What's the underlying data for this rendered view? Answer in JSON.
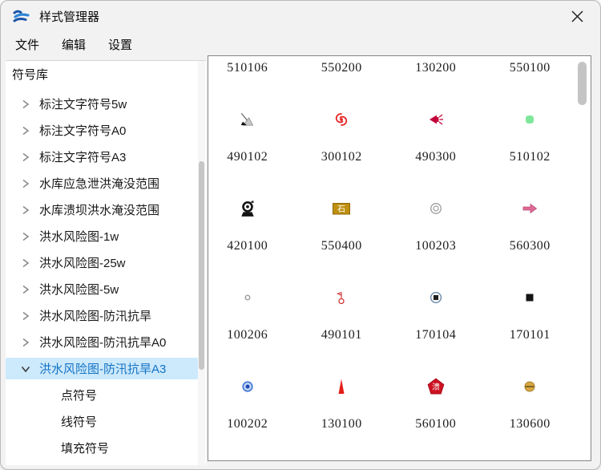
{
  "window": {
    "title": "样式管理器",
    "close_icon": "close"
  },
  "menu": {
    "items": [
      "文件",
      "编辑",
      "设置"
    ]
  },
  "sidebar": {
    "header": "符号库",
    "items": [
      {
        "label": "标注文字符号5w",
        "chevron": "collapsed",
        "level": 1,
        "selected": false
      },
      {
        "label": "标注文字符号A0",
        "chevron": "collapsed",
        "level": 1,
        "selected": false
      },
      {
        "label": "标注文字符号A3",
        "chevron": "collapsed",
        "level": 1,
        "selected": false
      },
      {
        "label": "水库应急泄洪淹没范围",
        "chevron": "collapsed",
        "level": 1,
        "selected": false
      },
      {
        "label": "水库溃坝洪水淹没范围",
        "chevron": "collapsed",
        "level": 1,
        "selected": false
      },
      {
        "label": "洪水风险图-1w",
        "chevron": "collapsed",
        "level": 1,
        "selected": false
      },
      {
        "label": "洪水风险图-25w",
        "chevron": "collapsed",
        "level": 1,
        "selected": false
      },
      {
        "label": "洪水风险图-5w",
        "chevron": "collapsed",
        "level": 1,
        "selected": false
      },
      {
        "label": "洪水风险图-防汛抗旱",
        "chevron": "collapsed",
        "level": 1,
        "selected": false
      },
      {
        "label": "洪水风险图-防汛抗旱A0",
        "chevron": "collapsed",
        "level": 1,
        "selected": false
      },
      {
        "label": "洪水风险图-防汛抗旱A3",
        "chevron": "expanded",
        "level": 1,
        "selected": true
      },
      {
        "label": "点符号",
        "chevron": "none",
        "level": 2,
        "selected": false
      },
      {
        "label": "线符号",
        "chevron": "none",
        "level": 2,
        "selected": false
      },
      {
        "label": "填充符号",
        "chevron": "none",
        "level": 2,
        "selected": false
      }
    ]
  },
  "grid": {
    "rows": [
      {
        "cells": [
          {
            "code": "510106",
            "icon": "hidden",
            "glyph": ""
          },
          {
            "code": "550200",
            "icon": "hidden",
            "glyph": ""
          },
          {
            "code": "130200",
            "icon": "hidden",
            "glyph": ""
          },
          {
            "code": "550100",
            "icon": "hidden",
            "glyph": ""
          }
        ]
      },
      {
        "cells": [
          {
            "code": "490102",
            "icon": "dark-sail",
            "glyph": ""
          },
          {
            "code": "300102",
            "icon": "red-typhoon",
            "glyph": ""
          },
          {
            "code": "490300",
            "icon": "crimson-horn",
            "glyph": ""
          },
          {
            "code": "510102",
            "icon": "green-dot",
            "glyph": ""
          }
        ]
      },
      {
        "cells": [
          {
            "code": "420100",
            "icon": "black-camera",
            "glyph": ""
          },
          {
            "code": "550400",
            "icon": "gold-stone-plate",
            "glyph": "石"
          },
          {
            "code": "100203",
            "icon": "gray-double-circle",
            "glyph": ""
          },
          {
            "code": "560300",
            "icon": "pink-arrow-right",
            "glyph": ""
          }
        ]
      },
      {
        "cells": [
          {
            "code": "100206",
            "icon": "small-gray-circle",
            "glyph": ""
          },
          {
            "code": "490101",
            "icon": "red-station-flag",
            "glyph": ""
          },
          {
            "code": "170104",
            "icon": "circled-dark-square",
            "glyph": ""
          },
          {
            "code": "170101",
            "icon": "black-square",
            "glyph": ""
          }
        ]
      },
      {
        "cells": [
          {
            "code": "100202",
            "icon": "blue-target",
            "glyph": ""
          },
          {
            "code": "130100",
            "icon": "red-cone",
            "glyph": ""
          },
          {
            "code": "560100",
            "icon": "red-pentagon",
            "glyph": "溃"
          },
          {
            "code": "130600",
            "icon": "gold-disc-line",
            "glyph": ""
          }
        ]
      }
    ]
  },
  "colors": {
    "selection_bg": "#cde9fc",
    "selection_text": "#1273c4",
    "logo_dark_blue": "#1a56a8",
    "logo_light_blue": "#2f86d6",
    "icon_colors": {
      "dark-sail": {
        "needle": "#555555",
        "sail": "#c8c8c8",
        "base": "#111111"
      },
      "red-typhoon": {
        "main": "#e32222"
      },
      "crimson-horn": {
        "main": "#c3053a"
      },
      "green-dot": {
        "main": "#7fe79a"
      },
      "black-camera": {
        "main": "#151515"
      },
      "gold-stone-plate": {
        "bg": "#bf8f10",
        "border": "#8a6a06",
        "text": "#ffffff"
      },
      "gray-double-circle": {
        "main": "#9b9b9b"
      },
      "pink-arrow-right": {
        "fill": "#e06a96",
        "border": "#b84d76"
      },
      "small-gray-circle": {
        "main": "#8d8d8d"
      },
      "red-station-flag": {
        "main": "#d23b3b"
      },
      "circled-dark-square": {
        "ring": "#6f8dab",
        "center": "#1f1f1f"
      },
      "black-square": {
        "main": "#141414"
      },
      "blue-target": {
        "ring": "#3f74d6",
        "fill": "#c3d6f2",
        "center": "#1c47b5"
      },
      "red-cone": {
        "main": "#e41d17"
      },
      "red-pentagon": {
        "fill": "#ce1122",
        "border": "#a00d1b",
        "text": "#ffffff"
      },
      "gold-disc-line": {
        "fill": "#d7a743",
        "border": "#a6812b",
        "line": "#6d5316"
      }
    }
  }
}
